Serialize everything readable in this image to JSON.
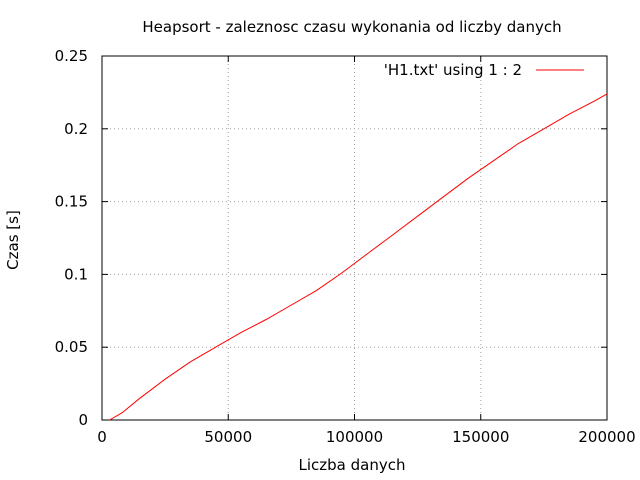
{
  "chart_data": {
    "type": "line",
    "title": "Heapsort - zaleznosc czasu wykonania od liczby danych",
    "xlabel": "Liczba danych",
    "ylabel": "Czas [s]",
    "xlim": [
      0,
      200000
    ],
    "ylim": [
      0,
      0.25
    ],
    "x_ticks": [
      0,
      50000,
      100000,
      150000,
      200000
    ],
    "x_tick_labels": [
      "0",
      "50000",
      "100000",
      "150000",
      "200000"
    ],
    "y_ticks": [
      0,
      0.05,
      0.1,
      0.15,
      0.2,
      0.25
    ],
    "y_tick_labels": [
      "0",
      "0.05",
      "0.1",
      "0.15",
      "0.2",
      "0.25"
    ],
    "grid": true,
    "legend_position": "top-right",
    "series": [
      {
        "name": "'H1.txt' using 1 : 2",
        "color": "#ff0000",
        "x": [
          3000,
          8000,
          15000,
          25000,
          35000,
          45000,
          55000,
          65000,
          75000,
          85000,
          95000,
          105000,
          115000,
          125000,
          135000,
          145000,
          155000,
          165000,
          175000,
          185000,
          195000,
          200000
        ],
        "y": [
          0.0,
          0.005,
          0.015,
          0.028,
          0.04,
          0.05,
          0.06,
          0.069,
          0.079,
          0.089,
          0.101,
          0.114,
          0.127,
          0.14,
          0.153,
          0.166,
          0.178,
          0.19,
          0.2,
          0.21,
          0.219,
          0.224
        ]
      }
    ]
  }
}
